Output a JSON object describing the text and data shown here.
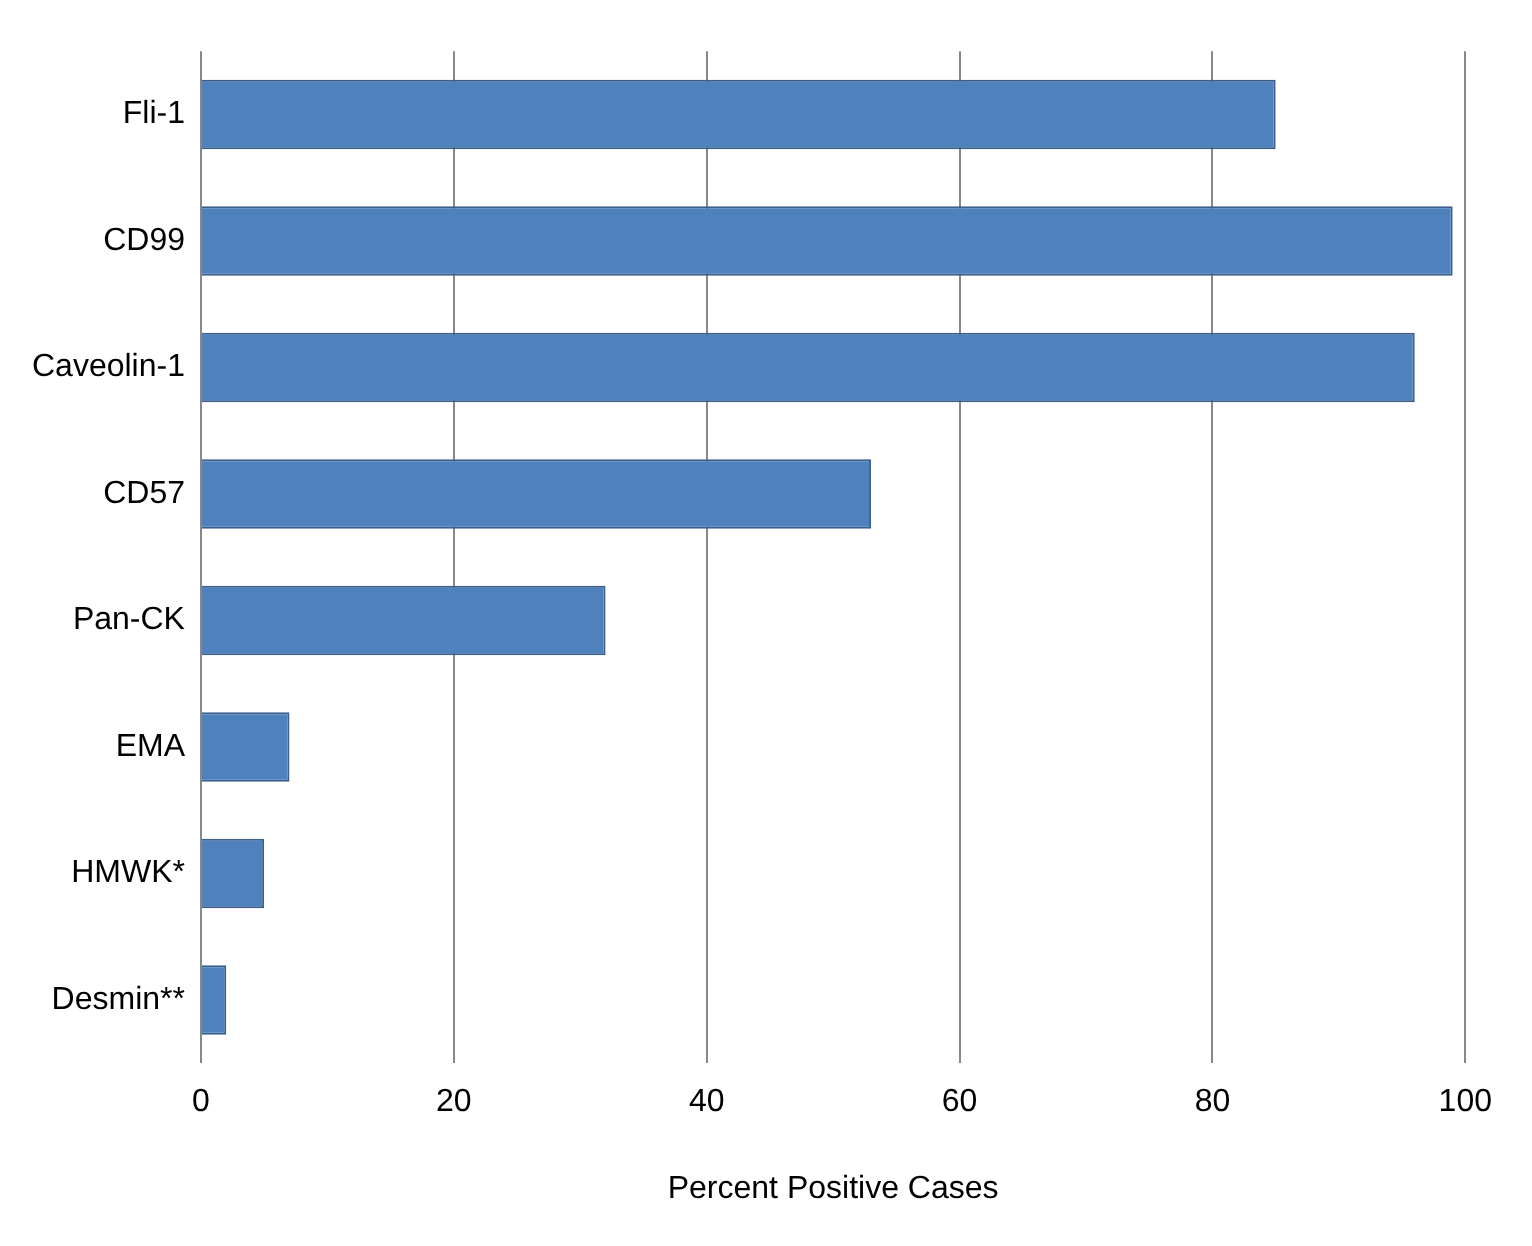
{
  "chart_data": {
    "type": "bar",
    "orientation": "horizontal",
    "xlabel": "Percent Positive Cases",
    "categories": [
      "Fli-1",
      "CD99",
      "Caveolin-1",
      "CD57",
      "Pan-CK",
      "EMA",
      "HMWK*",
      "Desmin**"
    ],
    "values": [
      85,
      99,
      96,
      53,
      32,
      7,
      5,
      2
    ],
    "color": "#4f81bd",
    "xlim": [
      0,
      100
    ],
    "xticks": [
      0,
      20,
      40,
      60,
      80,
      100
    ],
    "grid": "x",
    "legend": false
  }
}
